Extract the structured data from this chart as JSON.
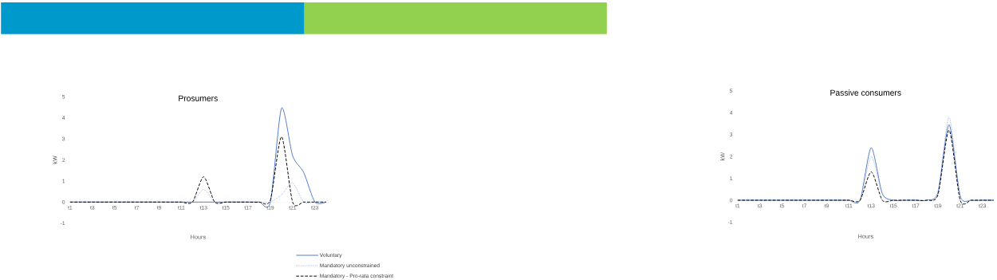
{
  "chart_data": [
    {
      "type": "line",
      "title": "Prosumers",
      "xlabel": "Hours",
      "ylabel": "kW",
      "categories": [
        "t1",
        null,
        "t3",
        null,
        "t5",
        null,
        "t7",
        null,
        "t9",
        null,
        "t11",
        null,
        "t13",
        null,
        "t15",
        null,
        "t17",
        null,
        "t19",
        null,
        "t21",
        null,
        "t23",
        null
      ],
      "series": [
        {
          "name": "Voluntary",
          "color": "#4472c4",
          "line_style": "solid",
          "values": [
            0,
            0,
            0,
            0,
            0,
            0,
            0,
            0,
            0,
            0,
            0,
            0,
            0,
            0,
            0,
            0,
            0,
            0,
            0,
            4.45,
            2.2,
            1.4,
            0,
            0
          ]
        },
        {
          "name": "Mandatory unconstrained",
          "color": "#8faadc",
          "line_style": "dotted",
          "values": [
            0,
            0,
            0,
            0,
            0,
            0,
            0,
            0,
            0,
            0,
            0,
            0,
            0.6,
            0,
            0,
            0,
            0,
            0,
            0,
            0.35,
            0.9,
            0,
            0,
            0
          ]
        },
        {
          "name": "Mandatory - Pro-rata constraint",
          "color": "#000000",
          "line_style": "dashed",
          "values": [
            0,
            0,
            0,
            0,
            0,
            0,
            0,
            0,
            0,
            0,
            0,
            0,
            1.2,
            0,
            0,
            0,
            0,
            0,
            0.1,
            3.1,
            0,
            0,
            0,
            0
          ]
        }
      ],
      "ylim": [
        -1,
        5
      ],
      "yticks": [
        -1,
        0,
        1,
        2,
        3,
        4,
        5
      ],
      "legend": "bottom"
    },
    {
      "type": "line",
      "title": "Passive consumers",
      "xlabel": "Hours",
      "ylabel": "kW",
      "categories": [
        "t1",
        null,
        "t3",
        null,
        "t5",
        null,
        "t7",
        null,
        "t9",
        null,
        "t11",
        null,
        "t13",
        null,
        "t15",
        null,
        "t17",
        null,
        "t19",
        null,
        "t21",
        null,
        "t23",
        null
      ],
      "series": [
        {
          "color": "#4472c4",
          "line_style": "solid",
          "values": [
            0,
            0,
            0,
            0,
            0,
            0,
            0,
            0,
            0,
            0,
            0,
            0,
            2.4,
            0.3,
            0,
            0,
            0,
            0,
            0.35,
            3.45,
            0.2,
            0,
            0,
            0
          ]
        },
        {
          "color": "#8faadc",
          "line_style": "dotted",
          "values": [
            0,
            0,
            0,
            0,
            0,
            0,
            0,
            0,
            0,
            0,
            0,
            0,
            2.0,
            0.3,
            0,
            0,
            0,
            0,
            0.4,
            3.8,
            0.2,
            0,
            0,
            0
          ]
        },
        {
          "color": "#000000",
          "line_style": "dashed",
          "values": [
            0,
            0,
            0,
            0,
            0,
            0,
            0,
            0,
            0,
            0,
            0,
            0,
            1.3,
            0,
            0,
            0,
            0,
            0,
            0.25,
            3.2,
            0,
            0,
            0,
            0
          ]
        }
      ],
      "ylim": [
        -1,
        5
      ],
      "yticks": [
        -1,
        0,
        1,
        2,
        3,
        4,
        5
      ],
      "legend": false
    }
  ]
}
